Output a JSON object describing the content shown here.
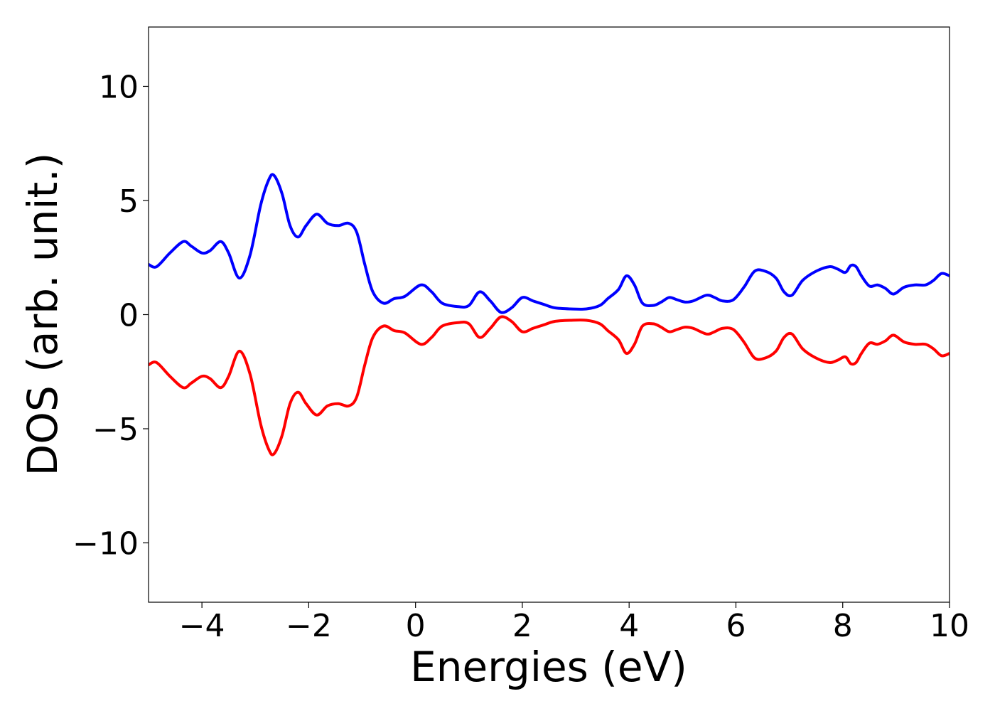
{
  "chart_data": {
    "type": "line",
    "title": "",
    "xlabel": "Energies (eV)",
    "ylabel": "DOS (arb. unit.)",
    "xlim": [
      -5,
      10
    ],
    "ylim": [
      -12.6,
      12.6
    ],
    "x_ticks": [
      -4,
      -2,
      0,
      2,
      4,
      6,
      8,
      10
    ],
    "x_tick_labels": [
      "−4",
      "−2",
      "0",
      "2",
      "4",
      "6",
      "8",
      "10"
    ],
    "y_ticks": [
      -10,
      -5,
      0,
      5,
      10
    ],
    "y_tick_labels": [
      "−10",
      "−5",
      "0",
      "5",
      "10"
    ],
    "grid": false,
    "legend": "none",
    "series": [
      {
        "color": "#0000ff",
        "x": [
          -5.0,
          -4.85,
          -4.6,
          -4.35,
          -4.2,
          -4.0,
          -3.85,
          -3.65,
          -3.5,
          -3.3,
          -3.1,
          -2.9,
          -2.75,
          -2.65,
          -2.5,
          -2.35,
          -2.2,
          -2.05,
          -1.85,
          -1.65,
          -1.45,
          -1.25,
          -1.1,
          -0.95,
          -0.8,
          -0.6,
          -0.4,
          -0.2,
          0.1,
          0.3,
          0.5,
          0.8,
          1.0,
          1.2,
          1.4,
          1.6,
          1.8,
          2.0,
          2.2,
          2.4,
          2.6,
          2.9,
          3.2,
          3.45,
          3.6,
          3.8,
          3.95,
          4.1,
          4.25,
          4.45,
          4.6,
          4.75,
          4.9,
          5.05,
          5.2,
          5.45,
          5.6,
          5.75,
          5.95,
          6.15,
          6.35,
          6.55,
          6.75,
          6.9,
          7.05,
          7.25,
          7.5,
          7.75,
          7.9,
          8.05,
          8.15,
          8.25,
          8.35,
          8.5,
          8.65,
          8.8,
          8.95,
          9.15,
          9.35,
          9.55,
          9.7,
          9.85,
          10.0
        ],
        "values": [
          2.2,
          2.1,
          2.7,
          3.2,
          3.0,
          2.7,
          2.8,
          3.2,
          2.7,
          1.6,
          2.6,
          4.8,
          5.9,
          6.1,
          5.3,
          3.9,
          3.4,
          3.9,
          4.4,
          4.0,
          3.9,
          4.0,
          3.6,
          2.2,
          1.0,
          0.5,
          0.7,
          0.8,
          1.3,
          1.0,
          0.5,
          0.35,
          0.4,
          1.0,
          0.6,
          0.1,
          0.3,
          0.75,
          0.6,
          0.45,
          0.3,
          0.25,
          0.25,
          0.4,
          0.7,
          1.1,
          1.7,
          1.3,
          0.5,
          0.4,
          0.55,
          0.75,
          0.65,
          0.55,
          0.6,
          0.85,
          0.75,
          0.6,
          0.65,
          1.2,
          1.9,
          1.9,
          1.6,
          1.0,
          0.85,
          1.5,
          1.9,
          2.1,
          2.0,
          1.85,
          2.15,
          2.1,
          1.7,
          1.25,
          1.3,
          1.15,
          0.9,
          1.2,
          1.3,
          1.3,
          1.5,
          1.8,
          1.7
        ]
      },
      {
        "color": "#ff0000",
        "x": [
          -5.0,
          -4.85,
          -4.6,
          -4.35,
          -4.2,
          -4.0,
          -3.85,
          -3.65,
          -3.5,
          -3.3,
          -3.1,
          -2.9,
          -2.75,
          -2.65,
          -2.5,
          -2.35,
          -2.2,
          -2.05,
          -1.85,
          -1.65,
          -1.45,
          -1.25,
          -1.1,
          -0.95,
          -0.8,
          -0.6,
          -0.4,
          -0.2,
          0.1,
          0.3,
          0.5,
          0.8,
          1.0,
          1.2,
          1.4,
          1.6,
          1.8,
          2.0,
          2.2,
          2.4,
          2.6,
          2.9,
          3.2,
          3.45,
          3.6,
          3.8,
          3.95,
          4.1,
          4.25,
          4.45,
          4.6,
          4.75,
          4.9,
          5.05,
          5.2,
          5.45,
          5.6,
          5.75,
          5.95,
          6.15,
          6.35,
          6.55,
          6.75,
          6.9,
          7.05,
          7.25,
          7.5,
          7.75,
          7.9,
          8.05,
          8.15,
          8.25,
          8.35,
          8.5,
          8.65,
          8.8,
          8.95,
          9.15,
          9.35,
          9.55,
          9.7,
          9.85,
          10.0
        ],
        "values": [
          -2.2,
          -2.1,
          -2.7,
          -3.2,
          -3.0,
          -2.7,
          -2.8,
          -3.2,
          -2.7,
          -1.6,
          -2.6,
          -4.8,
          -5.9,
          -6.1,
          -5.3,
          -3.9,
          -3.4,
          -3.9,
          -4.4,
          -4.0,
          -3.9,
          -4.0,
          -3.6,
          -2.2,
          -1.0,
          -0.5,
          -0.7,
          -0.8,
          -1.3,
          -1.0,
          -0.5,
          -0.35,
          -0.4,
          -1.0,
          -0.6,
          -0.1,
          -0.3,
          -0.75,
          -0.6,
          -0.45,
          -0.3,
          -0.25,
          -0.25,
          -0.4,
          -0.7,
          -1.1,
          -1.7,
          -1.3,
          -0.5,
          -0.4,
          -0.55,
          -0.75,
          -0.65,
          -0.55,
          -0.6,
          -0.85,
          -0.75,
          -0.6,
          -0.65,
          -1.2,
          -1.9,
          -1.9,
          -1.6,
          -1.0,
          -0.85,
          -1.5,
          -1.9,
          -2.1,
          -2.0,
          -1.85,
          -2.15,
          -2.1,
          -1.7,
          -1.25,
          -1.3,
          -1.15,
          -0.9,
          -1.2,
          -1.3,
          -1.3,
          -1.5,
          -1.8,
          -1.7
        ]
      }
    ]
  }
}
